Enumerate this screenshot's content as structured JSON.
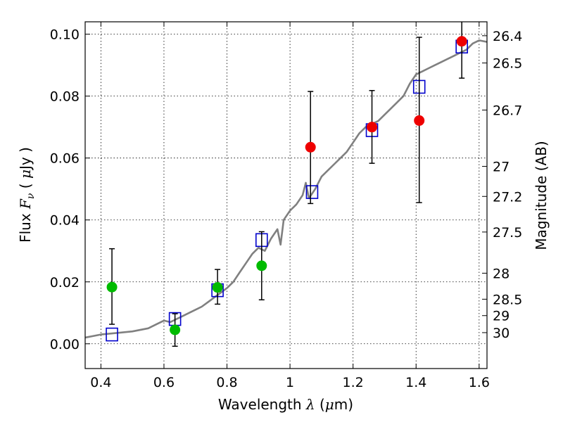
{
  "chart_data": {
    "type": "scatter",
    "xlabel": {
      "prefix": "Wavelength  ",
      "symbol": "λ",
      "unit_open": " (",
      "unit_sym": "μ",
      "unit_close": "m)"
    },
    "ylabel": {
      "prefix": "Flux  ",
      "symbol": "F",
      "sub": "ν",
      "unit_open": "  ( ",
      "unit_sym": "μ",
      "unit_close": "Jy )"
    },
    "y2label": "Magnitude (AB)",
    "xlim": [
      0.35,
      1.625
    ],
    "ylim": [
      -0.008,
      0.104
    ],
    "grid": true,
    "xticks": [
      0.4,
      0.6,
      0.8,
      1.0,
      1.2,
      1.4,
      1.6
    ],
    "xtick_labels": [
      "0.4",
      "0.6",
      "0.8",
      "1",
      "1.2",
      "1.4",
      "1.6"
    ],
    "yticks": [
      0.0,
      0.02,
      0.04,
      0.06,
      0.08,
      0.1
    ],
    "ytick_labels": [
      "0.00",
      "0.02",
      "0.04",
      "0.06",
      "0.08",
      "0.10"
    ],
    "mag_ticks": [
      {
        "label": "26.4",
        "flux": 0.0995
      },
      {
        "label": "26.5",
        "flux": 0.0907
      },
      {
        "label": "26.7",
        "flux": 0.0755
      },
      {
        "label": "27",
        "flux": 0.0573
      },
      {
        "label": "27.2",
        "flux": 0.0476
      },
      {
        "label": "27.5",
        "flux": 0.0361
      },
      {
        "label": "28",
        "flux": 0.0228
      },
      {
        "label": "28.5",
        "flux": 0.0144
      },
      {
        "label": "29",
        "flux": 0.0091
      },
      {
        "label": "30",
        "flux": 0.0036
      }
    ],
    "colors": {
      "model": "#808080",
      "green": "#00bb00",
      "red": "#ee0000",
      "square": "#0000cc",
      "errorbar": "#000000"
    },
    "series": [
      {
        "marker": "line",
        "x": [
          0.35,
          0.4,
          0.45,
          0.5,
          0.55,
          0.58,
          0.6,
          0.62,
          0.65,
          0.68,
          0.7,
          0.72,
          0.74,
          0.76,
          0.78,
          0.8,
          0.82,
          0.84,
          0.86,
          0.88,
          0.89,
          0.9,
          0.92,
          0.94,
          0.96,
          0.97,
          0.98,
          1.0,
          1.02,
          1.04,
          1.05,
          1.06,
          1.08,
          1.1,
          1.12,
          1.14,
          1.16,
          1.18,
          1.2,
          1.22,
          1.24,
          1.26,
          1.28,
          1.3,
          1.32,
          1.34,
          1.36,
          1.38,
          1.4,
          1.42,
          1.44,
          1.46,
          1.48,
          1.5,
          1.52,
          1.54,
          1.56,
          1.58,
          1.6,
          1.625
        ],
        "y": [
          0.002,
          0.003,
          0.0035,
          0.004,
          0.005,
          0.0065,
          0.0075,
          0.007,
          0.0085,
          0.01,
          0.011,
          0.012,
          0.0135,
          0.015,
          0.0165,
          0.018,
          0.02,
          0.023,
          0.026,
          0.029,
          0.03,
          0.031,
          0.03,
          0.034,
          0.037,
          0.032,
          0.04,
          0.043,
          0.045,
          0.048,
          0.052,
          0.047,
          0.05,
          0.054,
          0.056,
          0.058,
          0.06,
          0.062,
          0.065,
          0.068,
          0.07,
          0.071,
          0.072,
          0.074,
          0.076,
          0.078,
          0.08,
          0.084,
          0.087,
          0.088,
          0.089,
          0.09,
          0.091,
          0.092,
          0.093,
          0.094,
          0.095,
          0.097,
          0.098,
          0.0975
        ]
      },
      {
        "marker": "square",
        "x": [
          0.435,
          0.635,
          0.77,
          0.91,
          1.07,
          1.26,
          1.41,
          1.545
        ],
        "y": [
          0.003,
          0.008,
          0.0173,
          0.0335,
          0.049,
          0.069,
          0.083,
          0.096
        ]
      },
      {
        "marker": "circle-green",
        "x": [
          0.435,
          0.635,
          0.77,
          0.91
        ],
        "y": [
          0.0183,
          0.0045,
          0.0182,
          0.0252
        ],
        "yerr_low": [
          0.0063,
          -0.0008,
          0.0128,
          0.0142
        ],
        "yerr_high": [
          0.0307,
          0.0097,
          0.024,
          0.0362
        ]
      },
      {
        "marker": "circle-red",
        "x": [
          1.065,
          1.26,
          1.41,
          1.545
        ],
        "y": [
          0.0635,
          0.07,
          0.0721,
          0.0977
        ],
        "yerr_low": [
          0.0453,
          0.0583,
          0.0456,
          0.0858
        ],
        "yerr_high": [
          0.0815,
          0.0818,
          0.099,
          0.106
        ]
      }
    ]
  }
}
